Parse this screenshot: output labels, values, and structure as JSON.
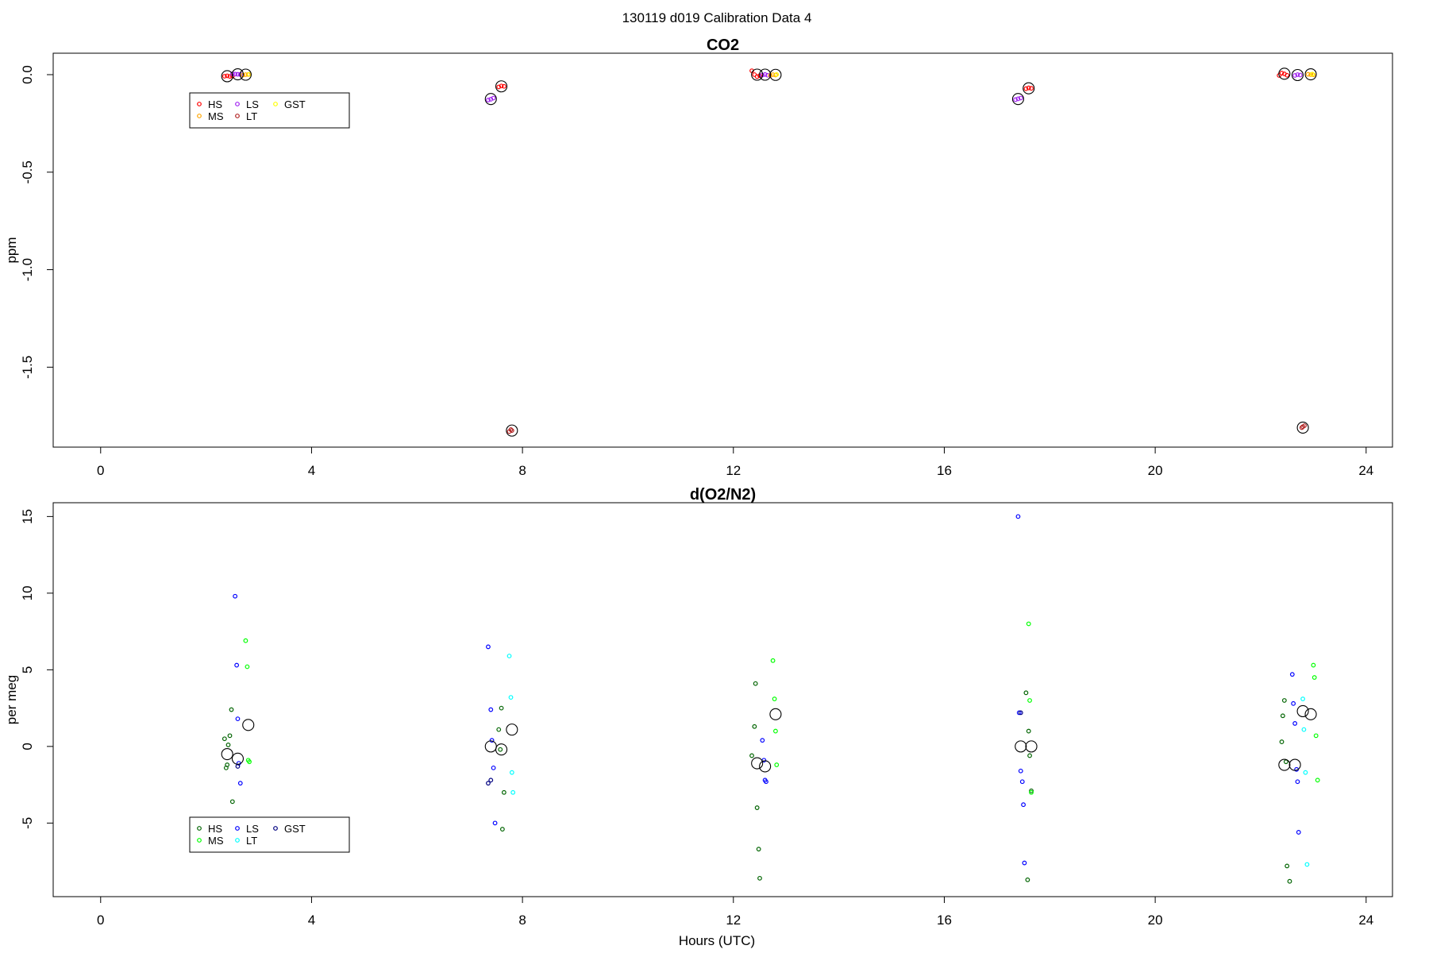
{
  "figure": {
    "title": "130119   d019   Calibration Data 4",
    "xlabel": "Hours (UTC)"
  },
  "chart_data": [
    {
      "type": "scatter",
      "title": "CO2",
      "ylabel": "ppm",
      "xlabel": "",
      "xlim": [
        -0.9,
        24.5
      ],
      "ylim": [
        -1.91,
        0.11
      ],
      "xticks": [
        0,
        4,
        8,
        12,
        16,
        20,
        24
      ],
      "yticks": [
        0.0,
        -0.5,
        -1.0,
        -1.5
      ],
      "ytick_labels": [
        "0.0",
        "-0.5",
        "-1.0",
        "-1.5"
      ],
      "legend": {
        "placement": "top-left",
        "entries": [
          {
            "label": "HS",
            "color": "#ff0000"
          },
          {
            "label": "MS",
            "color": "#ffa500"
          },
          {
            "label": "LS",
            "color": "#a020f0"
          },
          {
            "label": "LT",
            "color": "#b22222"
          },
          {
            "label": "GST",
            "color": "#ffff00"
          }
        ]
      },
      "series": [
        {
          "name": "HS",
          "color": "#ff0000",
          "x": [
            2.35,
            2.4,
            2.45,
            2.5,
            7.55,
            7.6,
            7.65,
            12.35,
            12.4,
            12.45,
            12.5,
            17.55,
            17.6,
            17.65,
            22.35,
            22.4,
            22.45,
            22.5
          ],
          "y": [
            -0.008,
            -0.006,
            -0.009,
            -0.007,
            -0.063,
            -0.058,
            -0.06,
            0.02,
            0.0,
            -0.01,
            -0.005,
            -0.072,
            -0.068,
            -0.07,
            -0.004,
            0.008,
            0.004,
            -0.003
          ]
        },
        {
          "name": "LS",
          "color": "#a020f0",
          "x": [
            2.5,
            2.55,
            2.6,
            2.65,
            7.35,
            7.4,
            7.45,
            12.55,
            12.6,
            12.65,
            17.35,
            17.4,
            17.45,
            22.65,
            22.7,
            22.75
          ],
          "y": [
            0.004,
            0.003,
            0.002,
            0.001,
            -0.13,
            -0.126,
            -0.12,
            -0.002,
            0.001,
            -0.003,
            -0.128,
            -0.124,
            -0.12,
            -0.004,
            0.0,
            -0.002
          ]
        },
        {
          "name": "MS",
          "color": "#ffa500",
          "x": [
            2.7,
            2.75,
            2.8,
            12.7,
            12.75,
            12.8,
            22.9,
            22.95,
            23.0
          ],
          "y": [
            -0.002,
            0.0,
            0.001,
            -0.003,
            0.0,
            -0.002,
            0.002,
            0.0,
            -0.001
          ]
        },
        {
          "name": "LT",
          "color": "#b22222",
          "x": [
            7.75,
            7.78,
            7.8,
            22.78,
            22.8,
            22.83
          ],
          "y": [
            -1.83,
            -1.82,
            -1.825,
            -1.81,
            -1.805,
            -1.8
          ]
        },
        {
          "name": "GST",
          "color": "#ffff00",
          "x": [
            2.82,
            12.82,
            22.98
          ],
          "y": [
            0.002,
            0.001,
            0.003
          ]
        }
      ],
      "means": {
        "color": "#000000",
        "x": [
          2.4,
          2.6,
          2.75,
          7.4,
          7.6,
          7.8,
          12.45,
          12.6,
          12.8,
          17.4,
          17.6,
          22.45,
          22.7,
          22.8,
          22.95
        ],
        "y": [
          -0.008,
          0.002,
          0.0,
          -0.125,
          -0.06,
          -1.825,
          0.0,
          0.0,
          -0.001,
          -0.125,
          -0.07,
          0.005,
          -0.002,
          -1.81,
          0.002
        ]
      }
    },
    {
      "type": "scatter",
      "title": "d(O2/N2)",
      "ylabel": "per meg",
      "xlabel": "Hours (UTC)",
      "xlim": [
        -0.9,
        24.5
      ],
      "ylim": [
        -9.8,
        15.9
      ],
      "xticks": [
        0,
        4,
        8,
        12,
        16,
        20,
        24
      ],
      "yticks": [
        15,
        10,
        5,
        0,
        -5
      ],
      "ytick_labels": [
        "15",
        "10",
        "5",
        "0",
        "-5"
      ],
      "legend": {
        "placement": "bottom-left",
        "entries": [
          {
            "label": "HS",
            "color": "#006400"
          },
          {
            "label": "MS",
            "color": "#00ff00"
          },
          {
            "label": "LS",
            "color": "#0000ff"
          },
          {
            "label": "LT",
            "color": "#00ffff"
          },
          {
            "label": "GST",
            "color": "#000080"
          }
        ]
      },
      "series": [
        {
          "name": "HS",
          "color": "#006400",
          "x": [
            2.35,
            2.38,
            2.4,
            2.42,
            2.45,
            2.48,
            2.5,
            7.6,
            7.55,
            7.58,
            7.62,
            7.65,
            12.35,
            12.4,
            12.42,
            12.45,
            12.48,
            12.5,
            17.55,
            17.6,
            17.62,
            17.65,
            17.58,
            22.4,
            22.42,
            22.45,
            22.48,
            22.5,
            22.55
          ],
          "y": [
            0.5,
            -1.4,
            -1.2,
            0.1,
            0.7,
            2.4,
            -3.6,
            2.5,
            1.1,
            -0.2,
            -5.4,
            -3.0,
            -0.6,
            1.3,
            4.1,
            -4.0,
            -6.7,
            -8.6,
            3.5,
            1.0,
            -0.6,
            -2.9,
            -8.7,
            0.3,
            2.0,
            3.0,
            -1.0,
            -7.8,
            -8.8
          ]
        },
        {
          "name": "MS",
          "color": "#00ff00",
          "x": [
            2.75,
            2.78,
            2.8,
            2.82,
            12.75,
            12.78,
            12.8,
            12.82,
            17.6,
            17.62,
            17.65,
            23.0,
            23.02,
            23.05,
            23.08
          ],
          "y": [
            6.9,
            5.2,
            -0.9,
            -1.0,
            5.6,
            3.1,
            1.0,
            -1.2,
            8.0,
            3.0,
            -3.0,
            5.3,
            4.5,
            0.7,
            -2.2
          ]
        },
        {
          "name": "LS",
          "color": "#0000ff",
          "x": [
            2.55,
            2.58,
            2.6,
            2.62,
            2.65,
            7.35,
            7.4,
            7.42,
            7.45,
            7.48,
            12.55,
            12.58,
            12.6,
            12.62,
            17.4,
            17.42,
            17.45,
            17.48,
            17.5,
            17.52,
            22.6,
            22.62,
            22.65,
            22.68,
            22.7,
            22.72
          ],
          "y": [
            9.8,
            5.3,
            1.8,
            -1.1,
            -2.4,
            6.5,
            2.4,
            0.4,
            -1.4,
            -5.0,
            0.4,
            -0.9,
            -2.2,
            -2.3,
            15.0,
            2.2,
            -1.6,
            -2.3,
            -3.8,
            -7.6,
            4.7,
            2.8,
            1.5,
            -1.5,
            -2.3,
            -5.6
          ]
        },
        {
          "name": "LT",
          "color": "#00ffff",
          "x": [
            7.75,
            7.78,
            7.8,
            7.82,
            22.8,
            22.82,
            22.85,
            22.88
          ],
          "y": [
            5.9,
            3.2,
            -1.7,
            -3.0,
            3.1,
            1.1,
            -1.7,
            -7.7
          ]
        },
        {
          "name": "GST",
          "color": "#000080",
          "x": [
            2.6,
            7.35,
            7.4,
            17.45
          ],
          "y": [
            -1.3,
            -2.4,
            -2.2,
            2.2
          ]
        }
      ],
      "means": {
        "color": "#000000",
        "x": [
          2.4,
          2.6,
          2.8,
          7.4,
          7.6,
          7.8,
          12.45,
          12.6,
          12.8,
          17.45,
          17.65,
          22.45,
          22.65,
          22.8,
          22.95
        ],
        "y": [
          -0.5,
          -0.8,
          1.4,
          0.0,
          -0.2,
          1.1,
          -1.1,
          -1.3,
          2.1,
          0.0,
          0.0,
          -1.2,
          -1.2,
          2.3,
          2.1
        ]
      }
    }
  ]
}
